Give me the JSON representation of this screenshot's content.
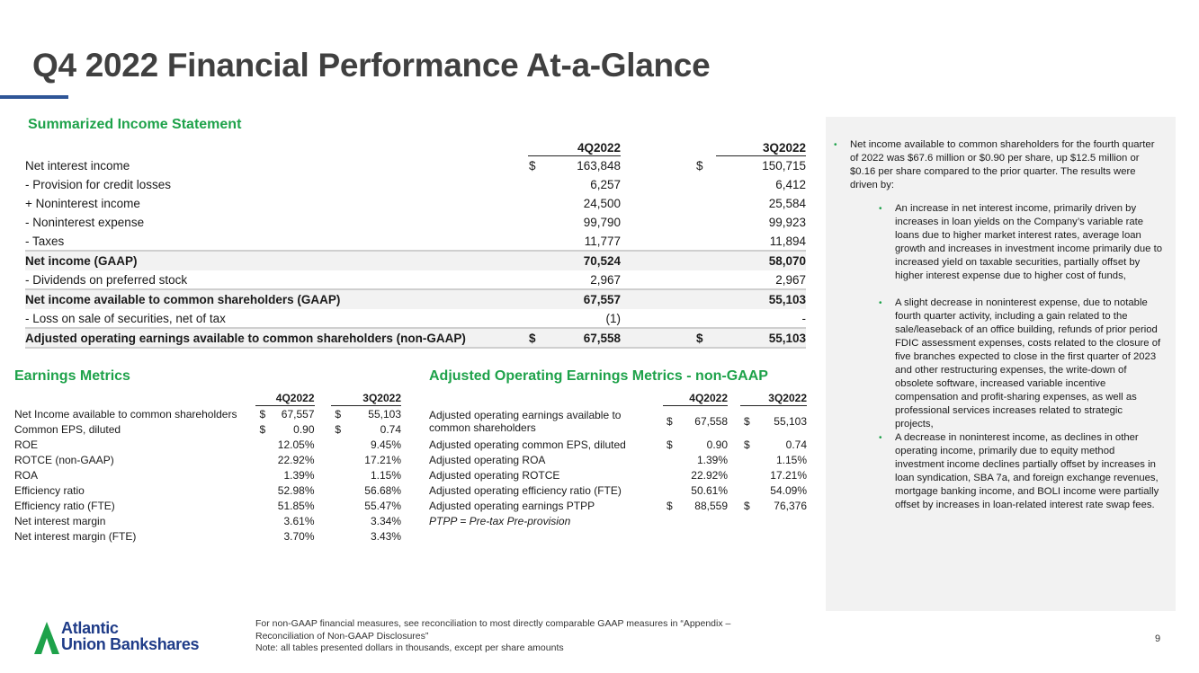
{
  "title": "Q4 2022 Financial Performance At-a-Glance",
  "colors": {
    "accent_green": "#1ea24a",
    "title_gray": "#404040",
    "brand_blue": "#2e5597"
  },
  "income": {
    "heading": "Summarized Income Statement",
    "columns": [
      "4Q2022",
      "3Q2022"
    ],
    "rows": [
      {
        "label": "Net interest income",
        "d1": "$",
        "v1": "163,848",
        "d2": "$",
        "v2": "150,715",
        "bold": false
      },
      {
        "label": "- Provision for credit losses",
        "d1": "",
        "v1": "6,257",
        "d2": "",
        "v2": "6,412",
        "bold": false
      },
      {
        "label": "+ Noninterest income",
        "d1": "",
        "v1": "24,500",
        "d2": "",
        "v2": "25,584",
        "bold": false
      },
      {
        "label": "- Noninterest expense",
        "d1": "",
        "v1": "99,790",
        "d2": "",
        "v2": "99,923",
        "bold": false
      },
      {
        "label": "- Taxes",
        "d1": "",
        "v1": "11,777",
        "d2": "",
        "v2": "11,894",
        "bold": false
      },
      {
        "label": "Net income (GAAP)",
        "d1": "",
        "v1": "70,524",
        "d2": "",
        "v2": "58,070",
        "bold": true
      },
      {
        "label": "- Dividends on preferred stock",
        "d1": "",
        "v1": "2,967",
        "d2": "",
        "v2": "2,967",
        "bold": false
      },
      {
        "label": "Net income available to common shareholders (GAAP)",
        "d1": "",
        "v1": "67,557",
        "d2": "",
        "v2": "55,103",
        "bold": true
      },
      {
        "label": "- Loss on sale of securities, net of tax",
        "d1": "",
        "v1": "(1)",
        "d2": "",
        "v2": "-",
        "bold": false
      },
      {
        "label": "Adjusted operating earnings available to common shareholders (non-GAAP)",
        "d1": "$",
        "v1": "67,558",
        "d2": "$",
        "v2": "55,103",
        "bold": true
      }
    ]
  },
  "earnings": {
    "heading": "Earnings Metrics",
    "columns": [
      "4Q2022",
      "3Q2022"
    ],
    "rows": [
      {
        "label": "Net Income available to common shareholders",
        "d1": "$",
        "v1": "67,557",
        "d2": "$",
        "v2": "55,103"
      },
      {
        "label": "Common EPS, diluted",
        "d1": "$",
        "v1": "0.90",
        "d2": "$",
        "v2": "0.74"
      },
      {
        "label": "ROE",
        "d1": "",
        "v1": "12.05%",
        "d2": "",
        "v2": "9.45%"
      },
      {
        "label": "ROTCE (non-GAAP)",
        "d1": "",
        "v1": "22.92%",
        "d2": "",
        "v2": "17.21%"
      },
      {
        "label": "ROA",
        "d1": "",
        "v1": "1.39%",
        "d2": "",
        "v2": "1.15%"
      },
      {
        "label": "Efficiency ratio",
        "d1": "",
        "v1": "52.98%",
        "d2": "",
        "v2": "56.68%"
      },
      {
        "label": "Efficiency ratio (FTE)",
        "d1": "",
        "v1": "51.85%",
        "d2": "",
        "v2": "55.47%"
      },
      {
        "label": "Net interest margin",
        "d1": "",
        "v1": "3.61%",
        "d2": "",
        "v2": "3.34%"
      },
      {
        "label": "Net interest margin (FTE)",
        "d1": "",
        "v1": "3.70%",
        "d2": "",
        "v2": "3.43%"
      }
    ]
  },
  "adjusted": {
    "heading": "Adjusted Operating Earnings Metrics - non-GAAP",
    "columns": [
      "4Q2022",
      "3Q2022"
    ],
    "rows": [
      {
        "label": "Adjusted operating earnings available to common shareholders",
        "d1": "$",
        "v1": "67,558",
        "d2": "$",
        "v2": "55,103"
      },
      {
        "label": "Adjusted operating common EPS, diluted",
        "d1": "$",
        "v1": "0.90",
        "d2": "$",
        "v2": "0.74"
      },
      {
        "label": "Adjusted operating ROA",
        "d1": "",
        "v1": "1.39%",
        "d2": "",
        "v2": "1.15%"
      },
      {
        "label": "Adjusted operating ROTCE",
        "d1": "",
        "v1": "22.92%",
        "d2": "",
        "v2": "17.21%"
      },
      {
        "label": "Adjusted operating efficiency ratio (FTE)",
        "d1": "",
        "v1": "50.61%",
        "d2": "",
        "v2": "54.09%"
      },
      {
        "label": "Adjusted operating earnings PTPP",
        "d1": "$",
        "v1": "88,559",
        "d2": "$",
        "v2": "76,376"
      }
    ],
    "note": "PTPP = Pre-tax Pre-provision"
  },
  "commentary": {
    "main": "Net income available to common shareholders for the fourth quarter of 2022 was $67.6 million or $0.90 per share, up $12.5 million or $0.16 per share compared to the prior quarter. The results were driven by:",
    "sub": [
      "An increase in net interest income, primarily driven by increases in loan yields on the Company’s variable rate loans due to higher market interest rates, average loan growth and increases in investment income primarily due to increased yield on taxable securities, partially offset by higher interest expense due to higher cost of funds,",
      "A slight decrease in noninterest expense, due to notable fourth quarter activity, including a gain related to the sale/leaseback of an office building, refunds of prior period FDIC assessment expenses, costs related to the closure of five branches expected to close in the first quarter of 2023 and other restructuring expenses, the write-down of obsolete software, increased variable incentive compensation and profit-sharing expenses, as well as professional services increases related to strategic projects,",
      "A decrease in noninterest income, as declines in other operating income, primarily due to equity method investment income declines partially offset by increases in loan syndication, SBA 7a, and foreign exchange revenues, mortgage banking income, and BOLI income were partially offset by increases in loan-related interest rate swap fees."
    ]
  },
  "footer": {
    "line1": "For non-GAAP financial measures, see reconciliation to most directly comparable GAAP measures in “Appendix – Reconciliation of Non-GAAP Disclosures”",
    "line2": "Note: all tables presented dollars in thousands, except per share amounts"
  },
  "logo": {
    "line1": "Atlantic",
    "line2": "Union Bankshares"
  },
  "page_number": "9"
}
